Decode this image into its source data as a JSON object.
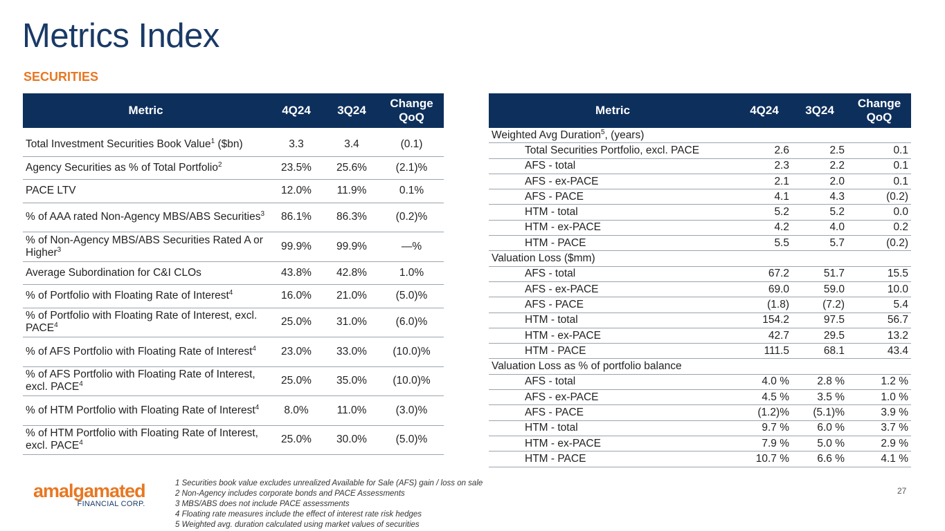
{
  "title": "Metrics Index",
  "subtitle": "SECURITIES",
  "left_table": {
    "headers": {
      "metric": "Metric",
      "q4": "4Q24",
      "q3": "3Q24",
      "change_line1": "Change",
      "change_line2": "QoQ"
    },
    "rows": [
      {
        "label": "Total Investment Securities Book Value",
        "sup": "1",
        "suffix": " ($bn)",
        "q4": "3.3",
        "q3": "3.4",
        "change": "(0.1)"
      },
      {
        "label": "Agency Securities as % of Total Portfolio",
        "sup": "2",
        "suffix": "",
        "q4": "23.5%",
        "q3": "25.6%",
        "change": "(2.1)%"
      },
      {
        "label": "PACE LTV",
        "sup": "",
        "suffix": "",
        "q4": "12.0%",
        "q3": "11.9%",
        "change": "0.1%"
      },
      {
        "label": "% of AAA rated Non-Agency MBS/ABS Securities",
        "sup": "3",
        "suffix": "",
        "q4": "86.1%",
        "q3": "86.3%",
        "change": "(0.2)%"
      },
      {
        "label": "% of Non-Agency MBS/ABS Securities Rated A or Higher",
        "sup": "3",
        "suffix": "",
        "q4": "99.9%",
        "q3": "99.9%",
        "change": "—%"
      },
      {
        "label": "Average Subordination for C&I CLOs",
        "sup": "",
        "suffix": "",
        "q4": "43.8%",
        "q3": "42.8%",
        "change": "1.0%"
      },
      {
        "label": "% of Portfolio with Floating Rate of Interest",
        "sup": "4",
        "suffix": "",
        "q4": "16.0%",
        "q3": "21.0%",
        "change": "(5.0)%"
      },
      {
        "label": "% of Portfolio with Floating Rate of Interest, excl. PACE",
        "sup": "4",
        "suffix": "",
        "q4": "25.0%",
        "q3": "31.0%",
        "change": "(6.0)%"
      },
      {
        "label": "% of AFS Portfolio with Floating Rate of Interest",
        "sup": "4",
        "suffix": "",
        "q4": "23.0%",
        "q3": "33.0%",
        "change": "(10.0)%"
      },
      {
        "label": "% of AFS Portfolio with Floating Rate of Interest, excl. PACE",
        "sup": "4",
        "suffix": "",
        "q4": "25.0%",
        "q3": "35.0%",
        "change": "(10.0)%"
      },
      {
        "label": "% of HTM Portfolio with Floating Rate of Interest",
        "sup": "4",
        "suffix": "",
        "q4": "8.0%",
        "q3": "11.0%",
        "change": "(3.0)%"
      },
      {
        "label": "% of HTM Portfolio with Floating Rate of Interest, excl. PACE",
        "sup": "4",
        "suffix": "",
        "q4": "25.0%",
        "q3": "30.0%",
        "change": "(5.0)%"
      }
    ]
  },
  "right_table": {
    "headers": {
      "metric": "Metric",
      "q4": "4Q24",
      "q3": "3Q24",
      "change_line1": "Change",
      "change_line2": "QoQ"
    },
    "sections": [
      {
        "title": "Weighted Avg Duration",
        "sup": "5",
        "suffix": ", (years)",
        "rows": [
          {
            "label": "Total Securities Portfolio, excl. PACE",
            "q4": "2.6",
            "q3": "2.5",
            "change": "0.1"
          },
          {
            "label": "AFS - total",
            "q4": "2.3",
            "q3": "2.2",
            "change": "0.1"
          },
          {
            "label": "AFS - ex-PACE",
            "q4": "2.1",
            "q3": "2.0",
            "change": "0.1"
          },
          {
            "label": "AFS - PACE",
            "q4": "4.1",
            "q3": "4.3",
            "change": "(0.2)"
          },
          {
            "label": "HTM - total",
            "q4": "5.2",
            "q3": "5.2",
            "change": "0.0"
          },
          {
            "label": "HTM - ex-PACE",
            "q4": "4.2",
            "q3": "4.0",
            "change": "0.2"
          },
          {
            "label": "HTM - PACE",
            "q4": "5.5",
            "q3": "5.7",
            "change": "(0.2)"
          }
        ]
      },
      {
        "title": "Valuation Loss ($mm)",
        "sup": "",
        "suffix": "",
        "rows": [
          {
            "label": "AFS - total",
            "q4": "67.2",
            "q3": "51.7",
            "change": "15.5"
          },
          {
            "label": "AFS - ex-PACE",
            "q4": "69.0",
            "q3": "59.0",
            "change": "10.0"
          },
          {
            "label": "AFS - PACE",
            "q4": "(1.8)",
            "q3": "(7.2)",
            "change": "5.4"
          },
          {
            "label": "HTM - total",
            "q4": "154.2",
            "q3": "97.5",
            "change": "56.7"
          },
          {
            "label": "HTM - ex-PACE",
            "q4": "42.7",
            "q3": "29.5",
            "change": "13.2"
          },
          {
            "label": "HTM - PACE",
            "q4": "111.5",
            "q3": "68.1",
            "change": "43.4"
          }
        ]
      },
      {
        "title": "Valuation Loss as % of portfolio balance",
        "sup": "",
        "suffix": "",
        "rows": [
          {
            "label": "AFS - total",
            "q4": "4.0 %",
            "q3": "2.8 %",
            "change": "1.2 %"
          },
          {
            "label": "AFS - ex-PACE",
            "q4": "4.5 %",
            "q3": "3.5 %",
            "change": "1.0 %"
          },
          {
            "label": "AFS - PACE",
            "q4": "(1.2)%",
            "q3": "(5.1)%",
            "change": "3.9 %"
          },
          {
            "label": "HTM - total",
            "q4": "9.7 %",
            "q3": "6.0 %",
            "change": "3.7 %"
          },
          {
            "label": "HTM - ex-PACE",
            "q4": "7.9 %",
            "q3": "5.0 %",
            "change": "2.9 %"
          },
          {
            "label": "HTM - PACE",
            "q4": "10.7 %",
            "q3": "6.6 %",
            "change": "4.1 %"
          }
        ]
      }
    ]
  },
  "logo": {
    "word": "amalgamated",
    "sub": "FINANCIAL CORP."
  },
  "footnotes": [
    "1 Securities book value excludes unrealized Available for Sale (AFS) gain / loss on sale",
    "2 Non-Agency includes corporate bonds and PACE Assessments",
    "3 MBS/ABS does not include PACE assessments",
    "4 Floating rate measures include the effect of interest rate risk hedges",
    "5 Weighted avg. duration calculated using market values of securities"
  ],
  "page_number": "27",
  "colors": {
    "navy": "#0d2f5c",
    "title": "#1a3a66",
    "accent": "#e87722"
  }
}
